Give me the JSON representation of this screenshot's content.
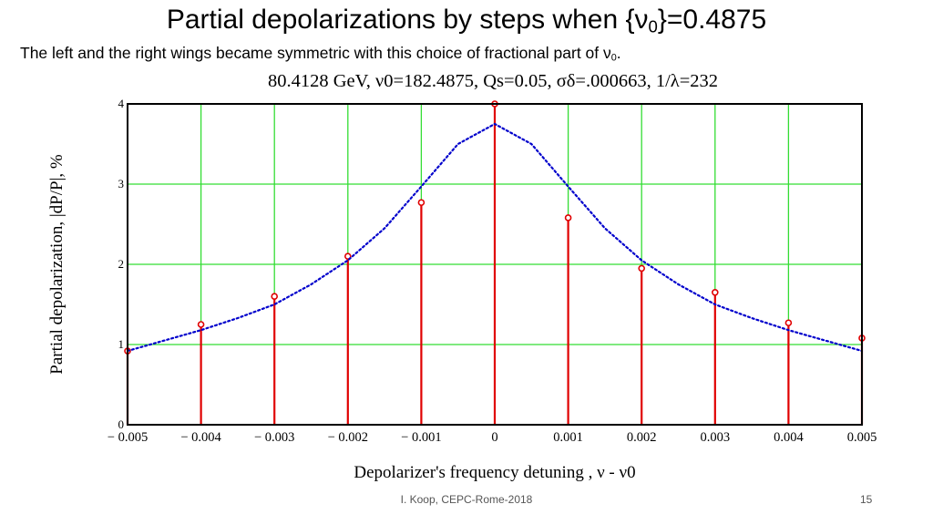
{
  "slide": {
    "title_main": "Partial depolarizations by steps when {ν",
    "title_sub": "0",
    "title_tail": "}=0.4875",
    "subtitle_main": "The left and the right wings became symmetric with this choice of fractional part of ν",
    "subtitle_sub": "0",
    "subtitle_tail": ".",
    "footer_credit": "I. Koop, CEPC-Rome-2018",
    "page_number": "15"
  },
  "chart_data": {
    "type": "scatter",
    "title": "80.4128 GeV, ν0=182.4875, Qs=0.05, σδ=.000663, 1/λ=232",
    "xlabel": "Depolarizer's frequency detuning , ν - ν0",
    "ylabel": "Partial depolarization, |dP/P|, %",
    "xlim": [
      -0.005,
      0.005
    ],
    "ylim": [
      0,
      4
    ],
    "grid": true,
    "x_ticks": [
      "− 0.005",
      "− 0.004",
      "− 0.003",
      "− 0.002",
      "− 0.001",
      "0",
      "0.001",
      "0.002",
      "0.003",
      "0.004",
      "0.005"
    ],
    "y_ticks": [
      "0",
      "1",
      "2",
      "3",
      "4"
    ],
    "series": [
      {
        "style": "stem",
        "color": "#e00000",
        "x": [
          -0.005,
          -0.004,
          -0.003,
          -0.002,
          -0.001,
          0,
          0.001,
          0.002,
          0.003,
          0.004,
          0.005
        ],
        "y": [
          0.92,
          1.25,
          1.6,
          2.1,
          2.77,
          4.0,
          2.58,
          1.95,
          1.65,
          1.27,
          1.08
        ]
      },
      {
        "style": "dotted-line",
        "color": "#0000cc",
        "x": [
          -0.005,
          -0.0045,
          -0.004,
          -0.0035,
          -0.003,
          -0.0025,
          -0.002,
          -0.0015,
          -0.001,
          -0.0005,
          0,
          0.0005,
          0.001,
          0.0015,
          0.002,
          0.0025,
          0.003,
          0.0035,
          0.004,
          0.0045,
          0.005
        ],
        "y": [
          0.92,
          1.05,
          1.18,
          1.33,
          1.5,
          1.75,
          2.05,
          2.45,
          2.97,
          3.5,
          3.75,
          3.5,
          2.97,
          2.45,
          2.05,
          1.75,
          1.5,
          1.33,
          1.18,
          1.05,
          0.92
        ]
      }
    ]
  }
}
